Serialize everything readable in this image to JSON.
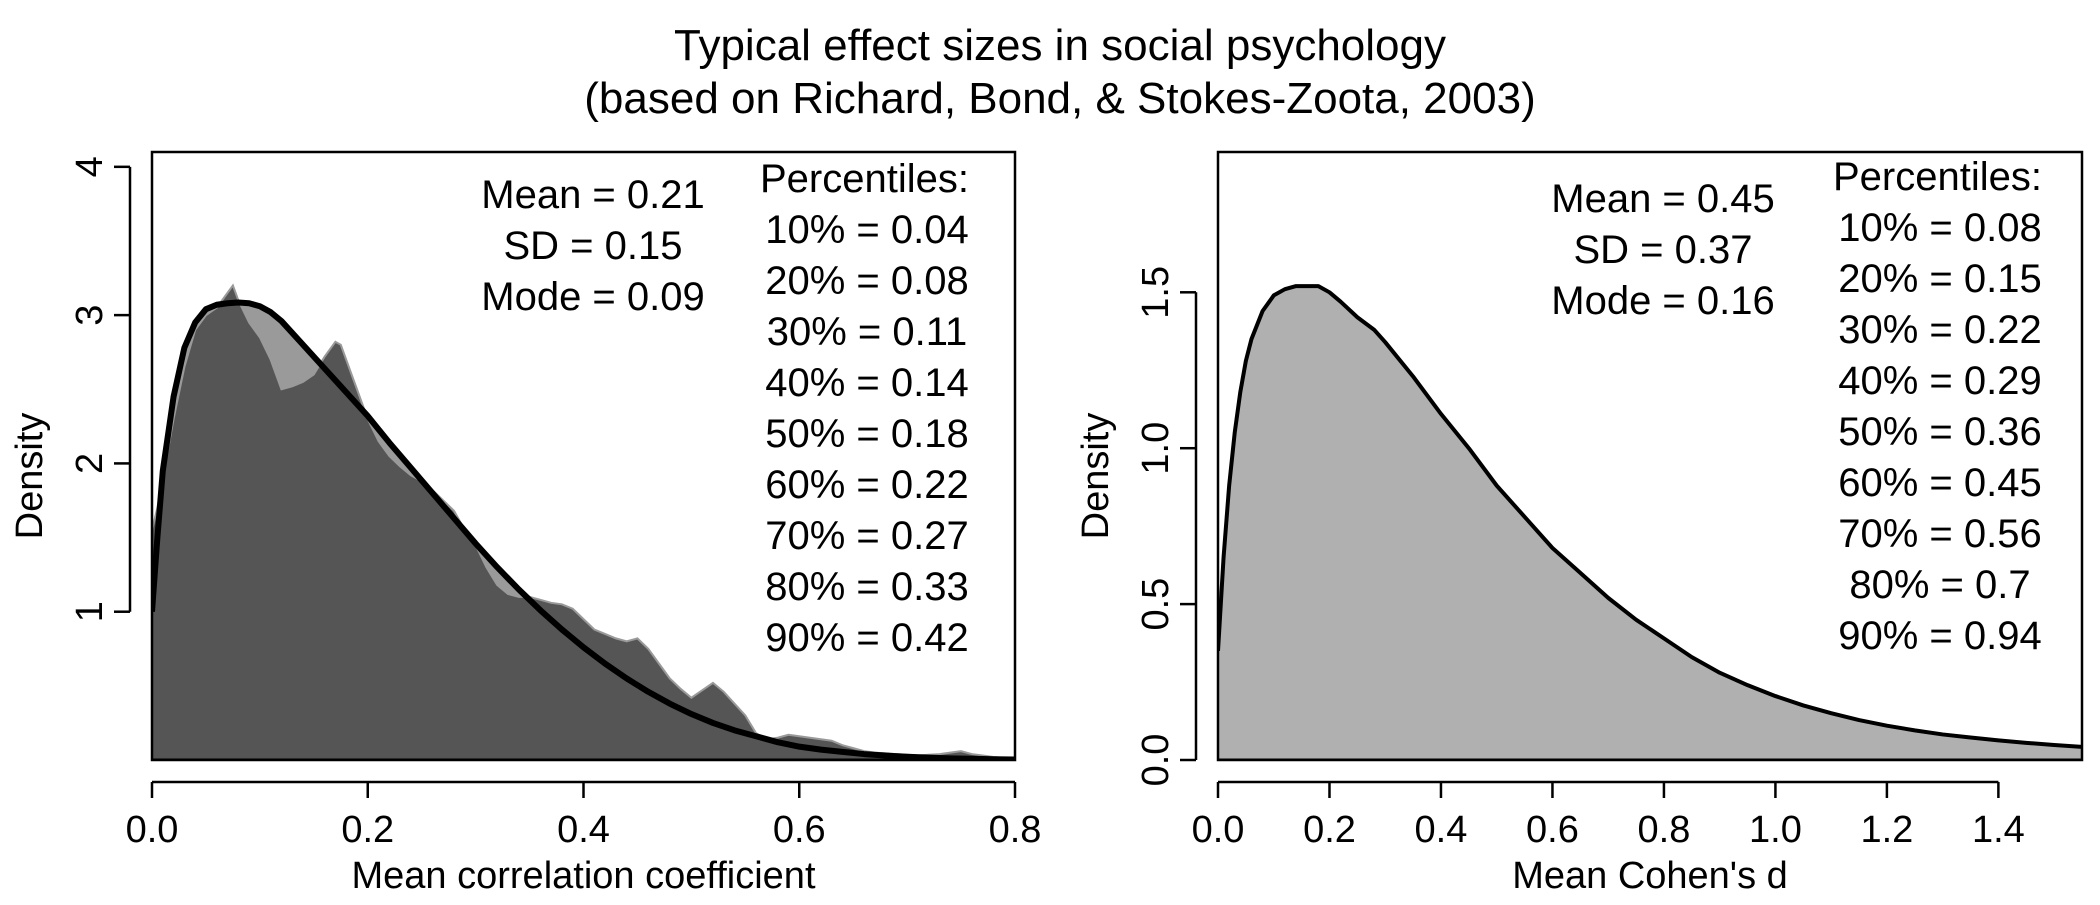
{
  "figure": {
    "title_line1": "Typical effect sizes in social psychology",
    "title_line2": "(based on Richard, Bond, & Stokes-Zoota, 2003)"
  },
  "colors": {
    "histogram_fill": "#555555",
    "histogram_outline": "#9a9a9a",
    "curve": "#000000",
    "density_fill": "#b0b0b0",
    "axis": "#000000"
  },
  "chart_data": [
    {
      "type": "area",
      "xlabel": "Mean correlation coefficient",
      "ylabel": "Density",
      "xlim": [
        0,
        0.8
      ],
      "ylim": [
        0,
        4.1
      ],
      "x_ticks": [
        "0.0",
        "0.2",
        "0.4",
        "0.6",
        "0.8"
      ],
      "y_ticks": [
        "1",
        "2",
        "3",
        "4"
      ],
      "grid": false,
      "stats": [
        "Mean = 0.21",
        "SD = 0.15",
        "Mode = 0.09"
      ],
      "percentiles_title": "Percentiles:",
      "percentiles": [
        "10% = 0.04",
        "20% = 0.08",
        "30% = 0.11",
        "40% = 0.14",
        "50% = 0.18",
        "60% = 0.22",
        "70% = 0.27",
        "80% = 0.33",
        "90% = 0.42"
      ],
      "empirical_density": {
        "x": [
          0.0,
          0.005,
          0.01,
          0.02,
          0.03,
          0.04,
          0.05,
          0.06,
          0.07,
          0.075,
          0.08,
          0.09,
          0.1,
          0.11,
          0.12,
          0.13,
          0.14,
          0.15,
          0.16,
          0.17,
          0.175,
          0.18,
          0.19,
          0.2,
          0.21,
          0.22,
          0.23,
          0.24,
          0.25,
          0.26,
          0.27,
          0.28,
          0.29,
          0.3,
          0.31,
          0.32,
          0.33,
          0.34,
          0.35,
          0.36,
          0.37,
          0.38,
          0.39,
          0.4,
          0.41,
          0.42,
          0.43,
          0.44,
          0.45,
          0.46,
          0.47,
          0.48,
          0.49,
          0.5,
          0.51,
          0.52,
          0.53,
          0.54,
          0.55,
          0.56,
          0.57,
          0.58,
          0.59,
          0.6,
          0.61,
          0.62,
          0.63,
          0.64,
          0.65,
          0.66,
          0.67,
          0.68,
          0.69,
          0.7,
          0.71,
          0.72,
          0.73,
          0.74,
          0.75,
          0.76,
          0.77,
          0.78,
          0.79,
          0.8
        ],
        "y": [
          1.55,
          1.7,
          1.9,
          2.3,
          2.65,
          2.9,
          3.0,
          3.05,
          3.15,
          3.2,
          3.1,
          2.95,
          2.85,
          2.7,
          2.5,
          2.52,
          2.55,
          2.6,
          2.72,
          2.82,
          2.8,
          2.7,
          2.5,
          2.3,
          2.15,
          2.05,
          1.98,
          1.92,
          1.88,
          1.82,
          1.75,
          1.68,
          1.55,
          1.45,
          1.3,
          1.18,
          1.12,
          1.1,
          1.1,
          1.08,
          1.06,
          1.05,
          1.02,
          0.95,
          0.88,
          0.85,
          0.82,
          0.8,
          0.82,
          0.75,
          0.65,
          0.55,
          0.48,
          0.42,
          0.47,
          0.52,
          0.46,
          0.38,
          0.3,
          0.18,
          0.14,
          0.15,
          0.17,
          0.16,
          0.15,
          0.14,
          0.13,
          0.1,
          0.08,
          0.06,
          0.05,
          0.045,
          0.04,
          0.035,
          0.03,
          0.035,
          0.04,
          0.05,
          0.06,
          0.04,
          0.03,
          0.02,
          0.015,
          0.01
        ]
      },
      "fitted_density": {
        "x": [
          0.0,
          0.005,
          0.01,
          0.02,
          0.03,
          0.04,
          0.05,
          0.06,
          0.07,
          0.08,
          0.09,
          0.1,
          0.11,
          0.12,
          0.14,
          0.16,
          0.18,
          0.2,
          0.22,
          0.24,
          0.26,
          0.28,
          0.3,
          0.32,
          0.34,
          0.36,
          0.38,
          0.4,
          0.42,
          0.44,
          0.46,
          0.48,
          0.5,
          0.52,
          0.54,
          0.56,
          0.58,
          0.6,
          0.62,
          0.64,
          0.66,
          0.68,
          0.7,
          0.72,
          0.74,
          0.76,
          0.78,
          0.8
        ],
        "y": [
          1.0,
          1.5,
          1.95,
          2.45,
          2.78,
          2.95,
          3.04,
          3.07,
          3.08,
          3.085,
          3.08,
          3.06,
          3.02,
          2.96,
          2.8,
          2.64,
          2.48,
          2.32,
          2.14,
          1.97,
          1.8,
          1.63,
          1.46,
          1.3,
          1.15,
          1.01,
          0.88,
          0.76,
          0.65,
          0.55,
          0.46,
          0.38,
          0.31,
          0.25,
          0.2,
          0.16,
          0.12,
          0.09,
          0.07,
          0.055,
          0.04,
          0.03,
          0.022,
          0.016,
          0.011,
          0.008,
          0.005,
          0.003
        ]
      }
    },
    {
      "type": "area",
      "xlabel": "Mean Cohen's d",
      "ylabel": "Density",
      "xlim": [
        0,
        1.55
      ],
      "ylim": [
        0,
        1.95
      ],
      "x_ticks": [
        "0.0",
        "0.2",
        "0.4",
        "0.6",
        "0.8",
        "1.0",
        "1.2",
        "1.4"
      ],
      "y_ticks": [
        "0.0",
        "0.5",
        "1.0",
        "1.5"
      ],
      "grid": false,
      "stats": [
        "Mean = 0.45",
        "SD = 0.37",
        "Mode = 0.16"
      ],
      "percentiles_title": "Percentiles:",
      "percentiles": [
        "10% = 0.08",
        "20% = 0.15",
        "30% = 0.22",
        "40% = 0.29",
        "50% = 0.36",
        "60% = 0.45",
        "70% = 0.56",
        "80% = 0.7",
        "90% = 0.94"
      ],
      "fitted_density": {
        "x": [
          0.0,
          0.01,
          0.02,
          0.03,
          0.04,
          0.05,
          0.06,
          0.08,
          0.1,
          0.12,
          0.14,
          0.16,
          0.18,
          0.2,
          0.22,
          0.25,
          0.28,
          0.3,
          0.35,
          0.4,
          0.45,
          0.5,
          0.55,
          0.6,
          0.65,
          0.7,
          0.75,
          0.8,
          0.85,
          0.9,
          0.95,
          1.0,
          1.05,
          1.1,
          1.15,
          1.2,
          1.25,
          1.3,
          1.35,
          1.4,
          1.45,
          1.5,
          1.55
        ],
        "y": [
          0.35,
          0.65,
          0.88,
          1.05,
          1.18,
          1.28,
          1.35,
          1.44,
          1.49,
          1.51,
          1.52,
          1.52,
          1.52,
          1.5,
          1.47,
          1.42,
          1.38,
          1.34,
          1.23,
          1.11,
          1.0,
          0.88,
          0.78,
          0.68,
          0.6,
          0.52,
          0.45,
          0.39,
          0.33,
          0.28,
          0.24,
          0.205,
          0.175,
          0.15,
          0.128,
          0.11,
          0.095,
          0.082,
          0.072,
          0.063,
          0.055,
          0.048,
          0.042
        ]
      }
    }
  ]
}
